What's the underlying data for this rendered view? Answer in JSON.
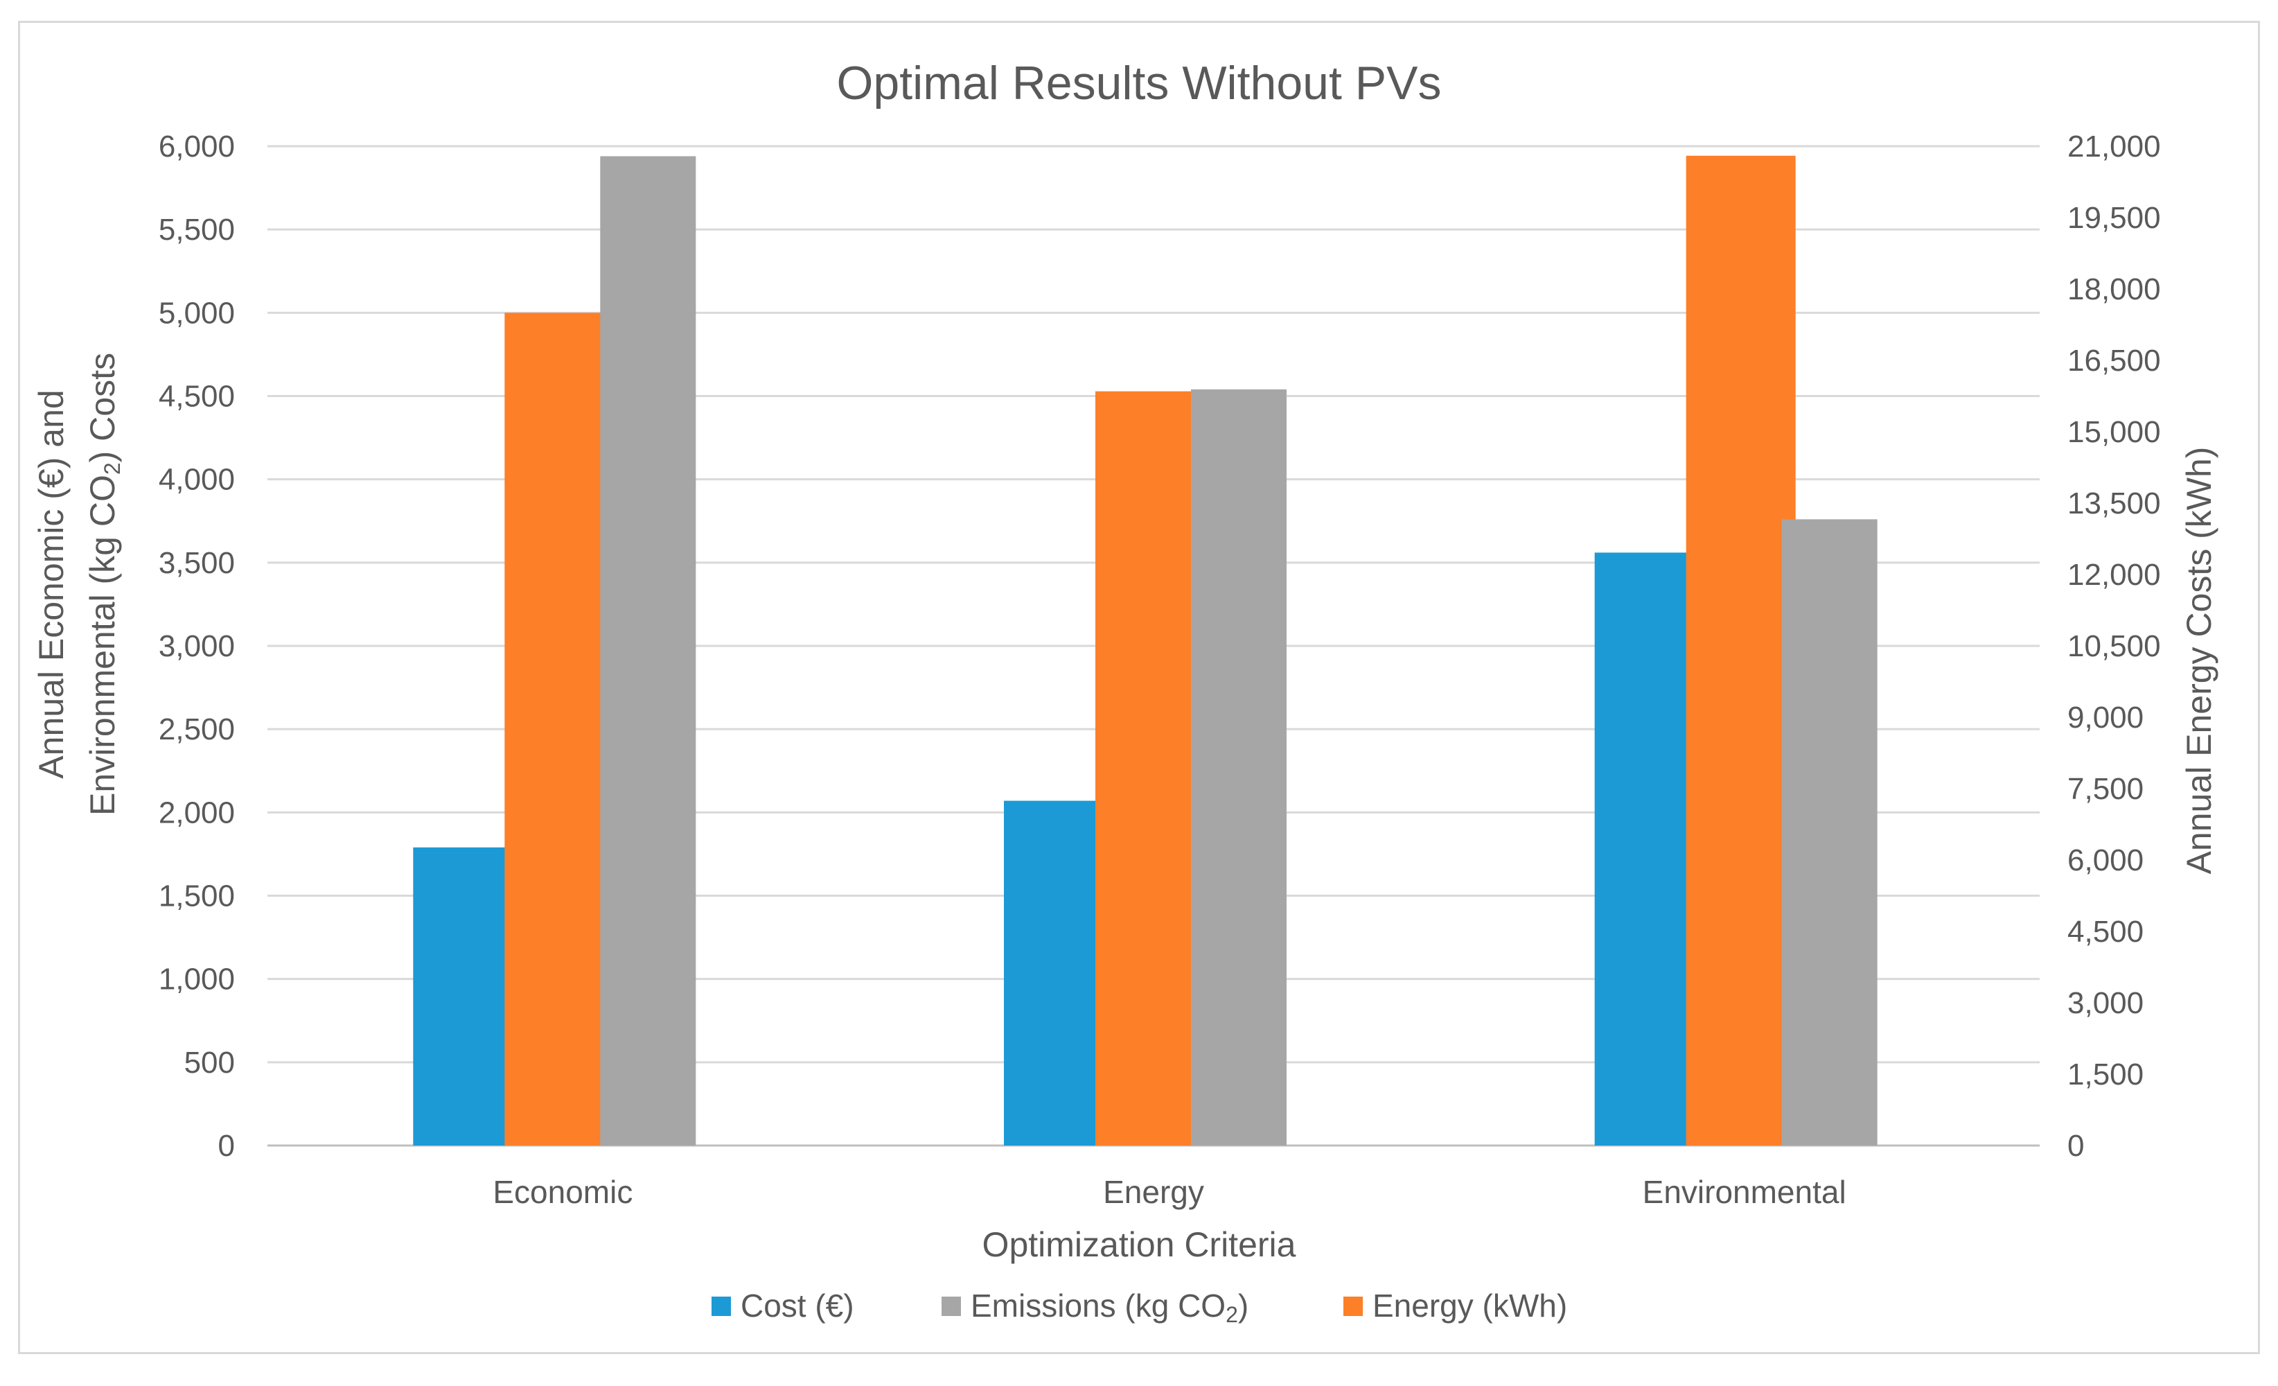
{
  "chart_data": {
    "type": "bar",
    "title": "Optimal Results Without PVs",
    "categories": [
      "Economic",
      "Energy",
      "Environmental"
    ],
    "xlabel": "Optimization Criteria",
    "ylabel_left": {
      "line1": "Annual Economic (€) and",
      "line2_prefix": "Environmental (kg CO",
      "line2_sub": "2",
      "line2_suffix": ") Costs"
    },
    "ylabel_right": "Annual Energy Costs (kWh)",
    "ylim_left": [
      0,
      6000
    ],
    "ylim_right": [
      0,
      21000
    ],
    "yticks_left": [
      "0",
      "500",
      "1,000",
      "1,500",
      "2,000",
      "2,500",
      "3,000",
      "3,500",
      "4,000",
      "4,500",
      "5,000",
      "5,500",
      "6,000"
    ],
    "yticks_right": [
      "0",
      "1,500",
      "3,000",
      "4,500",
      "6,000",
      "7,500",
      "9,000",
      "10,500",
      "12,000",
      "13,500",
      "15,000",
      "16,500",
      "18,000",
      "19,500",
      "21,000"
    ],
    "series": [
      {
        "name": "Cost (€)",
        "legend_label": "Cost (€)",
        "axis": "left",
        "color": "#1b9ad6",
        "values": [
          1790,
          2070,
          3560
        ]
      },
      {
        "name": "Energy (kWh)",
        "legend_label": "Energy (kWh)",
        "axis": "right",
        "color": "#fd7f28",
        "values": [
          17500,
          15850,
          20800
        ]
      },
      {
        "name": "Emissions (kg CO2)",
        "legend_label": "Emissions (kg CO",
        "legend_sub": "2",
        "legend_suffix": ")",
        "axis": "left",
        "color": "#a6a6a6",
        "values": [
          5940,
          4540,
          3760
        ]
      }
    ],
    "legend_order": [
      0,
      2,
      1
    ],
    "legend_position": "bottom",
    "grid": true
  }
}
